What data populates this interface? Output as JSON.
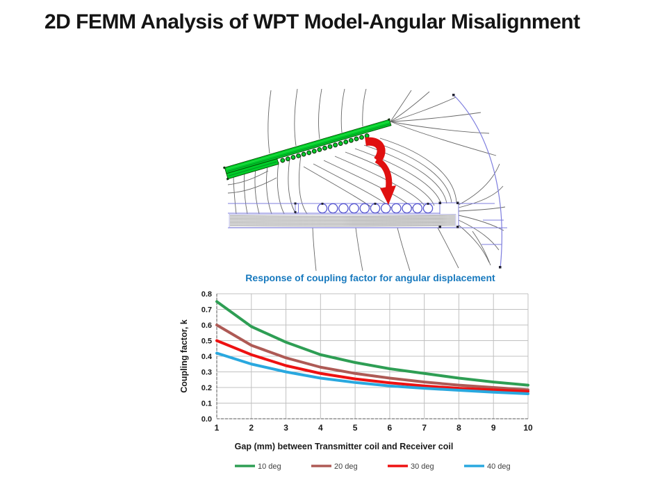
{
  "slide": {
    "title": "2D FEMM Analysis of WPT Model-Angular Misalignment",
    "background_color": "#FFFFFF"
  },
  "femm_figure": {
    "colors": {
      "receiver_coil_green": "#00CC29",
      "coil_outline_dark_green": "#004D00",
      "flux_line_gray": "#666666",
      "boundary_blue": "#7C7CDE",
      "rotation_arrow_red": "#E01010",
      "core_slab_gray": "#ECECEC"
    }
  },
  "chart_data": {
    "type": "line",
    "title": "Response of coupling factor for angular displacement",
    "title_color": "#1779BE",
    "xlabel": "Gap (mm) between Transmitter coil and Receiver coil",
    "ylabel": "Coupling factor, k",
    "x": [
      1,
      2,
      3,
      4,
      5,
      6,
      7,
      8,
      9,
      10
    ],
    "xlim": [
      1,
      10
    ],
    "ylim": [
      0.0,
      0.8
    ],
    "ytick_step": 0.1,
    "grid": true,
    "gridline_color": "#C0C0C0",
    "axis_text_color": "#1A1A1A",
    "legend_position": "bottom",
    "series": [
      {
        "name": "10 deg",
        "color": "#2E9E54",
        "values": [
          0.75,
          0.59,
          0.49,
          0.41,
          0.36,
          0.32,
          0.29,
          0.26,
          0.235,
          0.215
        ]
      },
      {
        "name": "20 deg",
        "color": "#AE5A55",
        "values": [
          0.6,
          0.47,
          0.39,
          0.33,
          0.29,
          0.26,
          0.235,
          0.215,
          0.2,
          0.185
        ]
      },
      {
        "name": "30 deg",
        "color": "#EE1111",
        "values": [
          0.5,
          0.41,
          0.34,
          0.29,
          0.255,
          0.23,
          0.21,
          0.195,
          0.185,
          0.175
        ]
      },
      {
        "name": "40 deg",
        "color": "#29A8DF",
        "values": [
          0.42,
          0.35,
          0.3,
          0.26,
          0.232,
          0.21,
          0.195,
          0.182,
          0.17,
          0.16
        ]
      }
    ]
  }
}
